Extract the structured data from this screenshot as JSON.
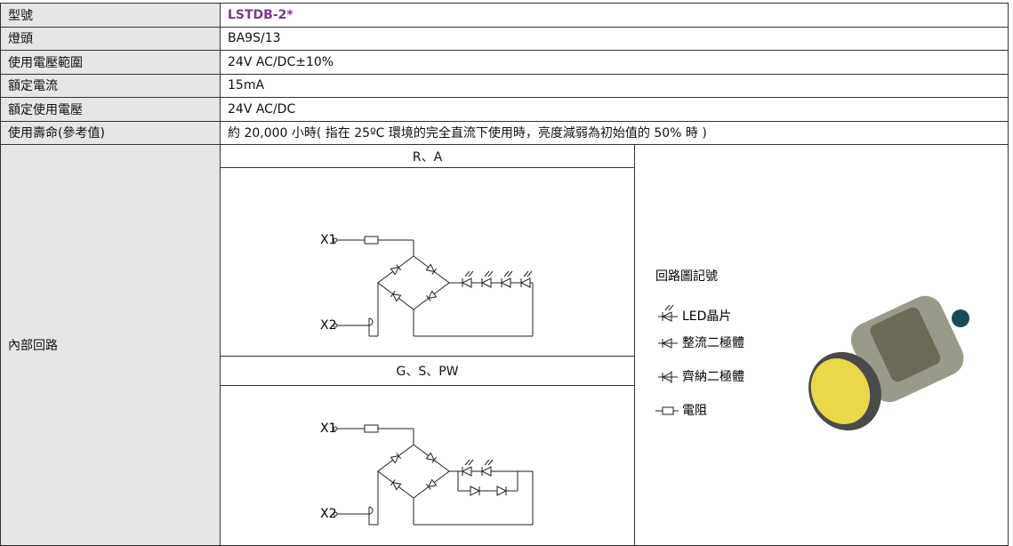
{
  "table": {
    "rows": [
      [
        "型號",
        "LSTDB-2*"
      ],
      [
        "燈頭",
        "BA9S/13"
      ],
      [
        "使用電壓範圍",
        "24V AC/DC±10%"
      ],
      [
        "額定電流",
        "15mA"
      ],
      [
        "額定使用電壓",
        "24V AC/DC"
      ],
      [
        "使用壽命(參考值)",
        "約 20,000 小時( 指在 25ºC 環境的完全直流下使用時，亮度減弱為初始值的 50% 時 )"
      ]
    ],
    "circuit_row": {
      "label": "內部回路",
      "circuits": [
        {
          "title": "R、A",
          "x1": "X1",
          "x2": "X2"
        },
        {
          "title": "G、S、PW",
          "x1": "X1",
          "x2": "X2"
        }
      ],
      "legend": {
        "title": "回路圖記號",
        "items": [
          "LED晶片",
          "整流二極體",
          "齊納二極體",
          "電阻"
        ]
      }
    }
  }
}
